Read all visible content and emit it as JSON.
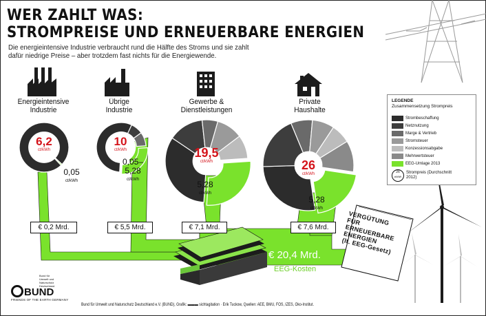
{
  "title_line1": "WER ZAHLT WAS:",
  "title_line2": "STROMPREISE UND ERNEUERBARE ENERGIEN",
  "subtitle": "Die energieintensive Industrie verbraucht rund die Hälfte des Stroms und sie zahlt dafür niedrige Preise – aber trotzdem fast nichts für die Energiewende.",
  "colors": {
    "eeg_green": "#7ae22c",
    "strombeschaffung": "#2c2c2c",
    "netznutzung": "#3d3d3d",
    "marge": "#6a6a6a",
    "stromsteuer": "#9a9a9a",
    "konzessionsabgabe": "#bcbcbc",
    "mehrwertsteuer": "#8a8a8a",
    "price_red": "#d4141b"
  },
  "unit_ct": "ct/kWh",
  "chart_data": {
    "type": "pie",
    "title": "STROMPREISE UND ERNEUERBARE ENERGIEN",
    "legend_title": "LEGENDE",
    "legend_subtitle": "Zusammensetzung Strompreis",
    "legend_placement": "right",
    "legend": [
      {
        "name": "Strombeschaffung",
        "color": "#2c2c2c"
      },
      {
        "name": "Netznutzung",
        "color": "#3d3d3d"
      },
      {
        "name": "Marge & Vertrieb",
        "color": "#6a6a6a"
      },
      {
        "name": "Stromsteuer",
        "color": "#9a9a9a"
      },
      {
        "name": "Konzessionsabgabe",
        "color": "#bcbcbc"
      },
      {
        "name": "Mehrwertsteuer",
        "color": "#8a8a8a"
      },
      {
        "name": "EEG-Umlage 2013",
        "color": "#7ae22c"
      }
    ],
    "legend_avg": {
      "value": "26",
      "unit": "ct/kWh",
      "label": "Strompreis (Durchschnitt 2012)"
    },
    "sectors": [
      {
        "name_line1": "Energieintensive",
        "name_line2": "Industrie",
        "price": "6,2",
        "eeg": "0,05",
        "eeg_total": "€ 0,2 Mrd.",
        "slices": [
          {
            "component": "Strombeschaffung",
            "value": 6.15
          },
          {
            "component": "EEG-Umlage 2013",
            "value": 0.05
          }
        ]
      },
      {
        "name_line1": "Übrige",
        "name_line2": "Industrie",
        "price": "10",
        "eeg": "0,05-5,28",
        "eeg_line1": "0,05–",
        "eeg_line2": "5,28",
        "eeg_total": "€ 5,5 Mrd.",
        "slices": [
          {
            "component": "Strombeschaffung",
            "value": 5.6
          },
          {
            "component": "Netznutzung",
            "value": 0.8
          },
          {
            "component": "Marge & Vertrieb",
            "value": 0.9
          },
          {
            "component": "EEG-Umlage 2013",
            "value": 2.7
          }
        ]
      },
      {
        "name_line1": "Gewerbe &",
        "name_line2": "Dienstleistungen",
        "price": "19,5",
        "eeg": "5,28",
        "eeg_total": "€ 7,1 Mrd.",
        "slices": [
          {
            "component": "Strombeschaffung",
            "value": 6.5
          },
          {
            "component": "Netznutzung",
            "value": 2.7
          },
          {
            "component": "Marge & Vertrieb",
            "value": 1.2
          },
          {
            "component": "Stromsteuer",
            "value": 2.0
          },
          {
            "component": "Konzessionsabgabe",
            "value": 1.8
          },
          {
            "component": "EEG-Umlage 2013",
            "value": 5.28
          }
        ]
      },
      {
        "name_line1": "Private",
        "name_line2": "Haushalte",
        "price": "26",
        "eeg": "5,28",
        "eeg_total": "€ 7,6 Mrd.",
        "slices": [
          {
            "component": "Strombeschaffung",
            "value": 7.0
          },
          {
            "component": "Netznutzung",
            "value": 5.0
          },
          {
            "component": "Marge & Vertrieb",
            "value": 2.0
          },
          {
            "component": "Stromsteuer",
            "value": 2.05
          },
          {
            "component": "Konzessionsabgabe",
            "value": 1.8
          },
          {
            "component": "Mehrwertsteuer",
            "value": 2.9
          },
          {
            "component": "EEG-Umlage 2013",
            "value": 5.28
          }
        ]
      }
    ],
    "total": "€ 20,4 Mrd.",
    "total_label": "EEG-Kosten"
  },
  "document_label": "VERGÜTUNG FÜR ERNEUERBARE ENERGIEN (lt. EEG-Gesetz)",
  "document_lines": [
    "VERGÜTUNG",
    "FÜR",
    "ERNEUERBARE",
    "ENERGIEN",
    "(lt. EEG-Gesetz)"
  ],
  "bund": {
    "name": "BUND",
    "tagline": "FRIENDS OF THE EARTH GERMANY",
    "side_lines": [
      "Bund für",
      "Umwelt und",
      "Naturschutz",
      "Deutschland"
    ]
  },
  "footer": "Bund für Umwelt und Naturschutz Deutschland e.V. (BUND), Grafik: ▬▬▬ sichtagitation · Erik Tuckow, Quellen: AEE, BMU, FÖS, IZES, Öko-Institut."
}
